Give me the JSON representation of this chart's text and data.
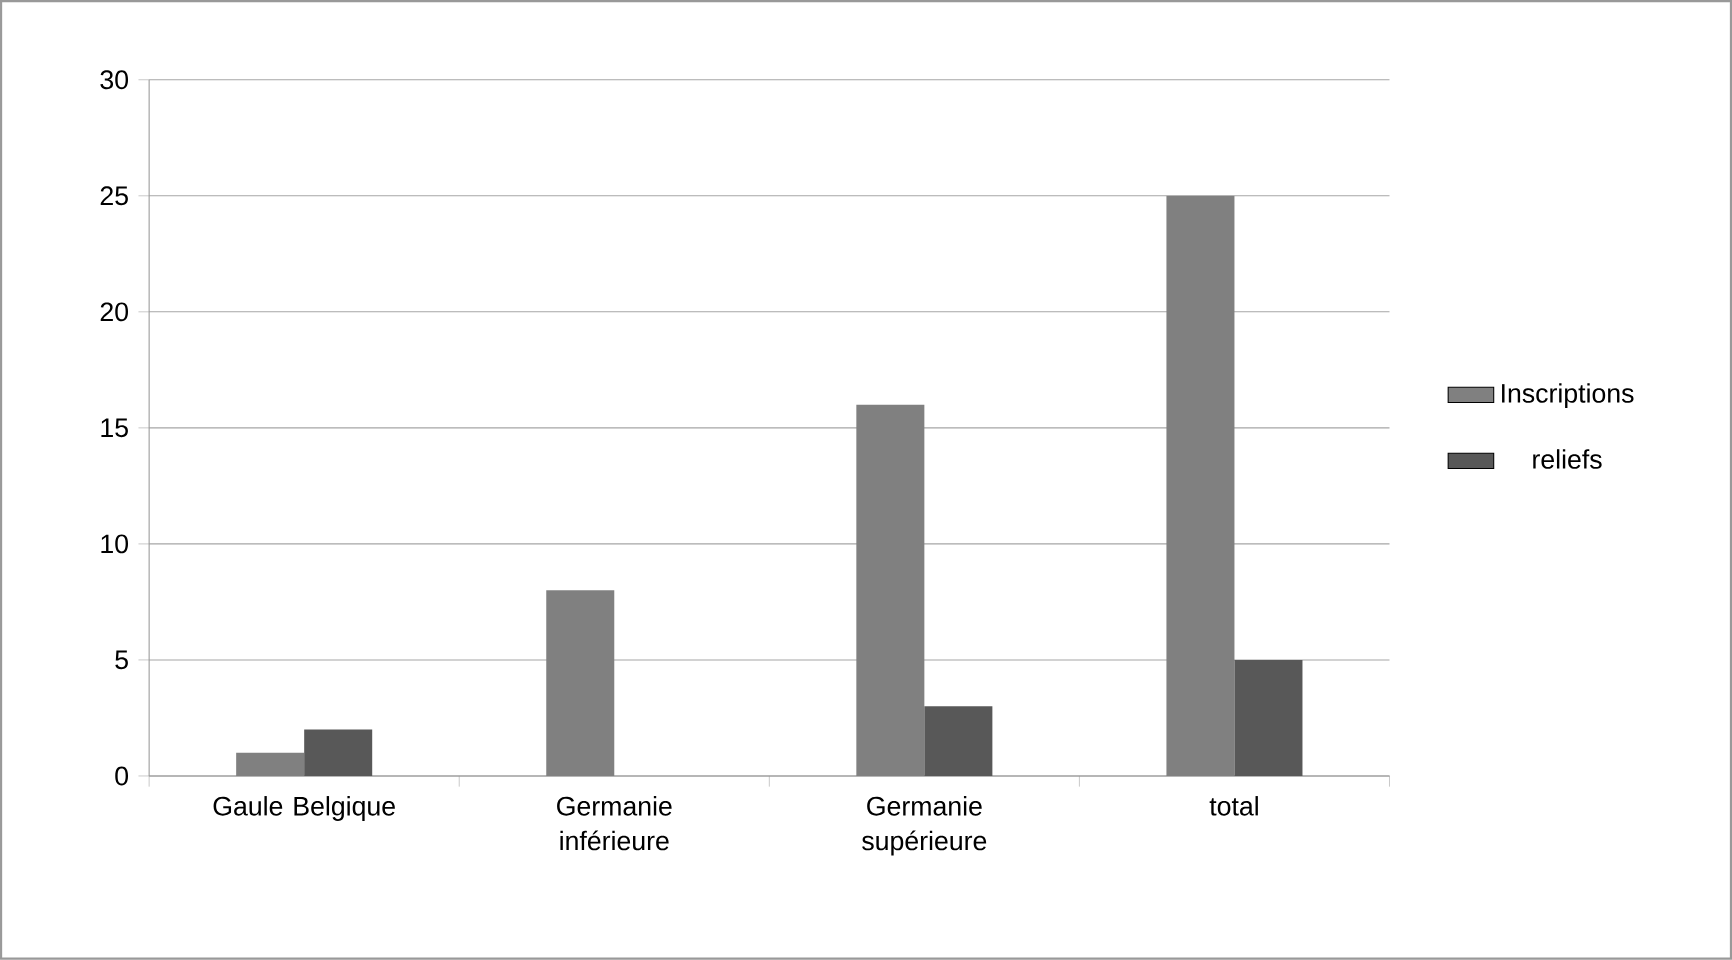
{
  "chart_data": {
    "type": "bar",
    "categories": [
      "Gaule Belgique",
      "Germanie inférieure",
      "Germanie supérieure",
      "total"
    ],
    "series": [
      {
        "name": "Inscriptions",
        "color": "#808080",
        "values": [
          1,
          8,
          16,
          25
        ]
      },
      {
        "name": "reliefs",
        "color": "#585858",
        "values": [
          2,
          0,
          3,
          5
        ]
      }
    ],
    "ylim": [
      0,
      30
    ],
    "yticks": [
      0,
      5,
      10,
      15,
      20,
      25,
      30
    ],
    "grid": "y",
    "legend": "right"
  }
}
